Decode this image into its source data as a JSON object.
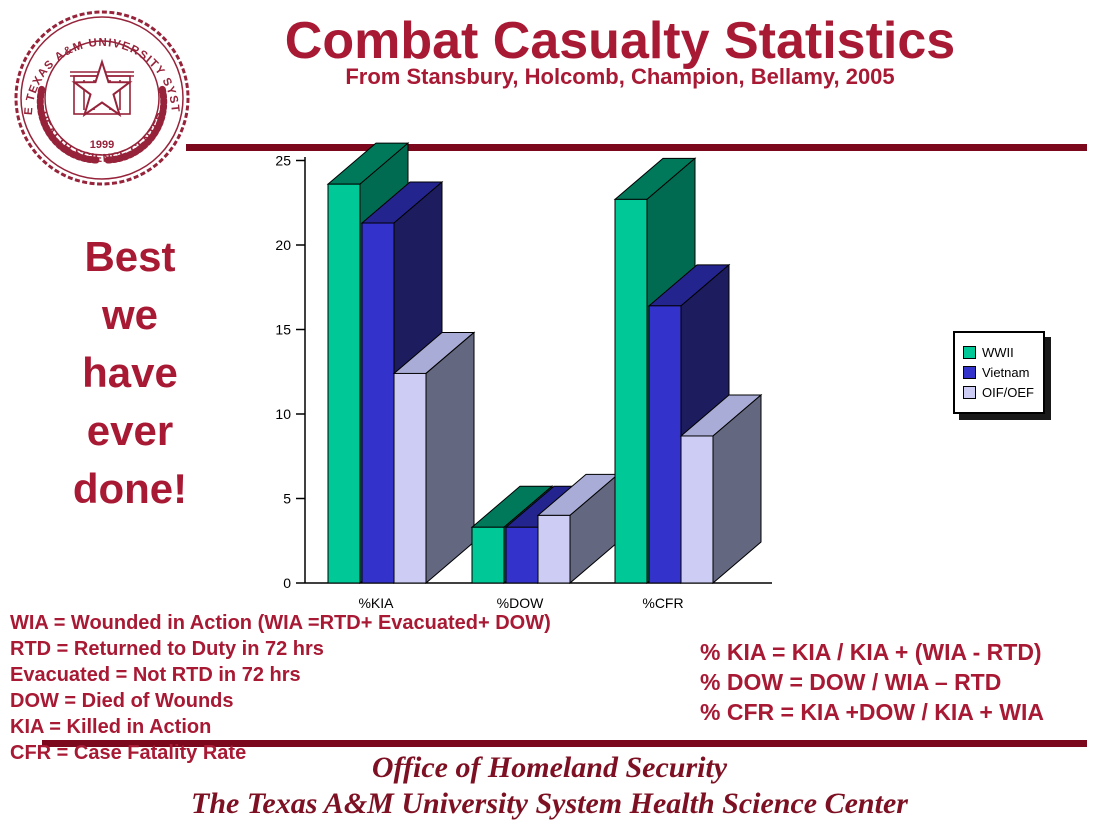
{
  "slide": {
    "title": "Combat Casualty Statistics",
    "subtitle": "From Stansbury, Holcomb, Champion, Bellamy, 2005",
    "side_note": {
      "lines": [
        "Best",
        "we",
        "have",
        "ever",
        "done!"
      ]
    },
    "footer": {
      "line1": "Office of Homeland Security",
      "line2": "The Texas A&M University System Health Science Center"
    }
  },
  "logo": {
    "ring_text_top": "THE TEXAS A&M UNIVERSITY SYSTEM",
    "ring_text_bottom": "· HEALTH SCIENCE CENTER ·",
    "year": "1999"
  },
  "definitions": {
    "lines": [
      "WIA = Wounded in Action (WIA =RTD+ Evacuated+ DOW)",
      "RTD = Returned to Duty in 72 hrs",
      "Evacuated = Not RTD in 72 hrs",
      "DOW = Died of Wounds",
      "KIA = Killed in Action",
      "CFR = Case Fatality Rate"
    ]
  },
  "formulas": {
    "lines": [
      "% KIA = KIA / KIA + (WIA - RTD)",
      "% DOW = DOW / WIA – RTD",
      "% CFR = KIA +DOW / KIA + WIA"
    ]
  },
  "chart_data": {
    "type": "bar",
    "projection": "3d",
    "title": "",
    "xlabel": "",
    "ylabel": "",
    "categories": [
      "%KIA",
      "%DOW",
      "%CFR"
    ],
    "series": [
      {
        "name": "WWII",
        "values": [
          23.6,
          3.3,
          22.7
        ],
        "color": "#00C896",
        "top_color": "#00795B",
        "side_color": "#006B50"
      },
      {
        "name": "Vietnam",
        "values": [
          21.3,
          3.3,
          16.4
        ],
        "color": "#3333CC",
        "top_color": "#24248F",
        "side_color": "#1C1C5E"
      },
      {
        "name": "OIF/OEF",
        "values": [
          12.4,
          4.0,
          8.7
        ],
        "color": "#CCCCF5",
        "top_color": "#A9ACD6",
        "side_color": "#63677F"
      }
    ],
    "ylim": [
      0,
      25
    ],
    "yticks": [
      0,
      5,
      10,
      15,
      20,
      25
    ],
    "legend_position": "right",
    "grid": false
  },
  "colors": {
    "text_maroon": "#A81934",
    "rule_maroon": "#7B081C",
    "footer_maroon": "#7D1022",
    "seal_maroon": "#96233A",
    "axis": "#000000",
    "background": "#FFFFFF"
  }
}
